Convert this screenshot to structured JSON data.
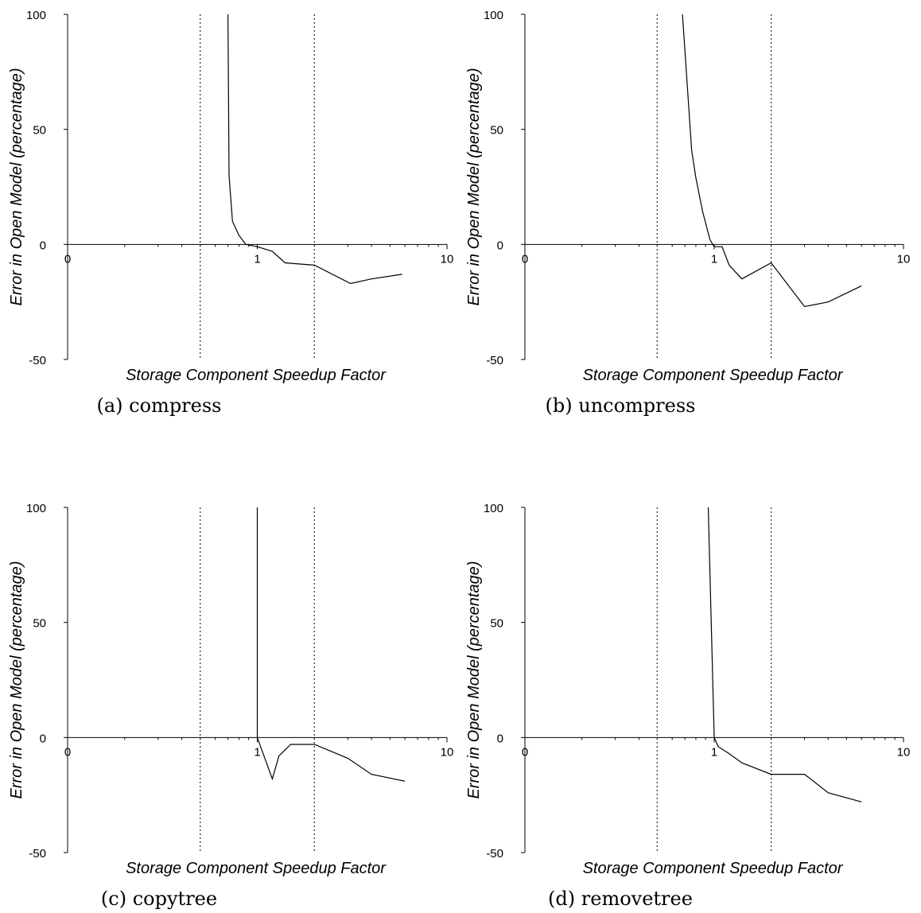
{
  "chart_data": [
    {
      "type": "line",
      "caption": "(a) compress",
      "xlabel": "Storage Component Speedup Factor",
      "ylabel": "Error in Open Model (percentage)",
      "xscale": "log",
      "xlim": [
        0.1,
        10
      ],
      "ylim": [
        -50,
        100
      ],
      "xticks": [
        "0",
        "1",
        "10"
      ],
      "yticks": [
        "100",
        "50",
        "0",
        "-50"
      ],
      "reference_lines_x": [
        0.5,
        2
      ],
      "series": [
        {
          "x": [
            0.7,
            0.71,
            0.74,
            0.8,
            0.87,
            1.0,
            1.2,
            1.4,
            2.0,
            3.1,
            4.0,
            5.8
          ],
          "y": [
            100,
            30,
            10,
            4,
            0,
            -1,
            -3,
            -8,
            -9,
            -17,
            -15,
            -13
          ]
        }
      ]
    },
    {
      "type": "line",
      "caption": "(b) uncompress",
      "xlabel": "Storage Component Speedup Factor",
      "ylabel": "Error in Open Model (percentage)",
      "xscale": "log",
      "xlim": [
        0.1,
        10
      ],
      "ylim": [
        -50,
        100
      ],
      "xticks": [
        "0",
        "1",
        "10"
      ],
      "yticks": [
        "100",
        "50",
        "0",
        "-50"
      ],
      "reference_lines_x": [
        0.5,
        2
      ],
      "series": [
        {
          "x": [
            0.68,
            0.76,
            0.8,
            0.87,
            0.95,
            1.0,
            1.1,
            1.2,
            1.4,
            2.0,
            3.0,
            4.0,
            6.0
          ],
          "y": [
            100,
            41,
            29,
            14,
            2,
            -1,
            -1,
            -9,
            -15,
            -8,
            -27,
            -25,
            -18
          ]
        }
      ]
    },
    {
      "type": "line",
      "caption": "(c) copytree",
      "xlabel": "Storage Component Speedup Factor",
      "ylabel": "Error in Open Model (percentage)",
      "xscale": "log",
      "xlim": [
        0.1,
        10
      ],
      "ylim": [
        -50,
        100
      ],
      "xticks": [
        "0",
        "1",
        "10"
      ],
      "yticks": [
        "100",
        "50",
        "0",
        "-50"
      ],
      "reference_lines_x": [
        0.5,
        2
      ],
      "series": [
        {
          "x": [
            1.0,
            1.0,
            1.2,
            1.3,
            1.5,
            2.0,
            3.0,
            4.0,
            6.0
          ],
          "y": [
            100,
            0,
            -18,
            -8,
            -3,
            -3,
            -9,
            -16,
            -19
          ]
        }
      ]
    },
    {
      "type": "line",
      "caption": "(d) removetree",
      "xlabel": "Storage Component Speedup Factor",
      "ylabel": "Error in Open Model (percentage)",
      "xscale": "log",
      "xlim": [
        0.1,
        10
      ],
      "ylim": [
        -50,
        100
      ],
      "xticks": [
        "0",
        "1",
        "10"
      ],
      "yticks": [
        "100",
        "50",
        "0",
        "-50"
      ],
      "reference_lines_x": [
        0.5,
        2
      ],
      "series": [
        {
          "x": [
            0.93,
            1.0,
            1.05,
            1.2,
            1.4,
            2.0,
            3.0,
            4.0,
            6.0
          ],
          "y": [
            100,
            0,
            -4,
            -7,
            -11,
            -16,
            -16,
            -24,
            -28
          ]
        }
      ]
    }
  ]
}
